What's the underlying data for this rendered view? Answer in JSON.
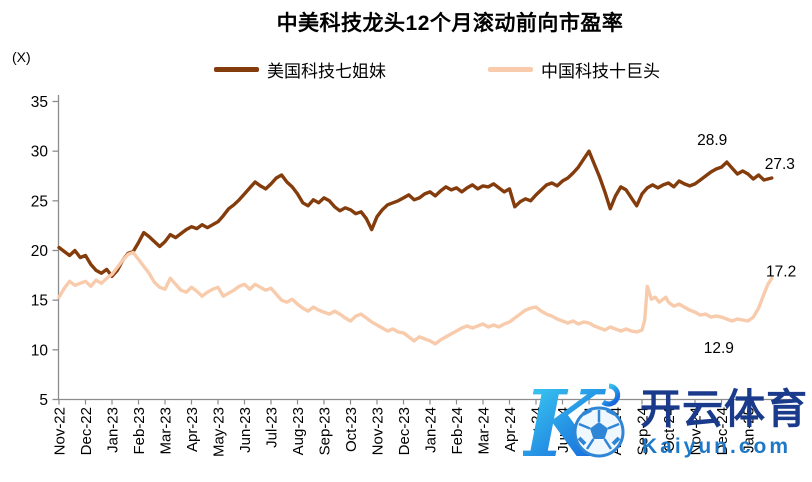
{
  "colors": {
    "us_line": "#843C0C",
    "cn_line": "#F8CBAD",
    "axis": "#8C8C8C",
    "text": "#000000",
    "watermark_navy": "#1A3A8C",
    "watermark_blue": "#1E78C8",
    "logo_cyan": "#40D9F4",
    "logo_blue": "#1566DB",
    "ball_blue": "#2F85D6"
  },
  "watermark": {
    "brand_cn": "开云体育",
    "brand_url": "Kaiyun.com",
    "logo": "kaiyun-k-soccer-ball-logo"
  },
  "chart_data": {
    "type": "line",
    "title": "中美科技龙头12个月滚动前向市盈率",
    "unit": "(X)",
    "ylim": [
      5,
      35
    ],
    "y_ticks": [
      5,
      10,
      15,
      20,
      25,
      30,
      35
    ],
    "grid": false,
    "legend_position": "top",
    "x_labels": [
      "Nov-22",
      "Dec-22",
      "Jan-23",
      "Feb-23",
      "Mar-23",
      "Apr-23",
      "May-23",
      "Jun-23",
      "Jul-23",
      "Aug-23",
      "Sep-23",
      "Oct-23",
      "Nov-23",
      "Dec-23",
      "Jan-24",
      "Feb-24",
      "Mar-24",
      "Apr-24",
      "May-24",
      "Jun-24",
      "Jul-24",
      "Aug-24",
      "Sep-24",
      "Oct-24",
      "Nov-24",
      "Dec-24",
      "Jan-25"
    ],
    "x_unit_note": "months, 0 = Nov-22",
    "series": [
      {
        "key": "us-tech-seven",
        "name": "美国科技七姐妹",
        "color": "#843C0C",
        "last_value": 27.3,
        "points": [
          [
            0,
            20.3
          ],
          [
            0.2,
            19.9
          ],
          [
            0.4,
            19.5
          ],
          [
            0.6,
            20.0
          ],
          [
            0.8,
            19.3
          ],
          [
            1.0,
            19.5
          ],
          [
            1.2,
            18.6
          ],
          [
            1.4,
            18.0
          ],
          [
            1.6,
            17.7
          ],
          [
            1.8,
            18.1
          ],
          [
            2.0,
            17.4
          ],
          [
            2.2,
            18.0
          ],
          [
            2.4,
            19.0
          ],
          [
            2.6,
            19.7
          ],
          [
            2.8,
            19.9
          ],
          [
            3.0,
            20.8
          ],
          [
            3.2,
            21.8
          ],
          [
            3.4,
            21.4
          ],
          [
            3.6,
            20.9
          ],
          [
            3.8,
            20.4
          ],
          [
            4.0,
            20.9
          ],
          [
            4.2,
            21.6
          ],
          [
            4.4,
            21.3
          ],
          [
            4.6,
            21.7
          ],
          [
            4.8,
            22.1
          ],
          [
            5.0,
            22.4
          ],
          [
            5.2,
            22.2
          ],
          [
            5.4,
            22.6
          ],
          [
            5.6,
            22.3
          ],
          [
            5.8,
            22.6
          ],
          [
            6.0,
            22.9
          ],
          [
            6.2,
            23.5
          ],
          [
            6.4,
            24.2
          ],
          [
            6.6,
            24.6
          ],
          [
            6.8,
            25.1
          ],
          [
            7.0,
            25.7
          ],
          [
            7.2,
            26.3
          ],
          [
            7.4,
            26.9
          ],
          [
            7.6,
            26.5
          ],
          [
            7.8,
            26.2
          ],
          [
            8.0,
            26.7
          ],
          [
            8.2,
            27.3
          ],
          [
            8.4,
            27.6
          ],
          [
            8.6,
            26.9
          ],
          [
            8.8,
            26.4
          ],
          [
            9.0,
            25.7
          ],
          [
            9.2,
            24.8
          ],
          [
            9.4,
            24.5
          ],
          [
            9.6,
            25.1
          ],
          [
            9.8,
            24.8
          ],
          [
            10.0,
            25.3
          ],
          [
            10.2,
            25.0
          ],
          [
            10.4,
            24.4
          ],
          [
            10.6,
            24.0
          ],
          [
            10.8,
            24.3
          ],
          [
            11.0,
            24.1
          ],
          [
            11.2,
            23.7
          ],
          [
            11.4,
            23.9
          ],
          [
            11.6,
            23.2
          ],
          [
            11.8,
            22.1
          ],
          [
            12.0,
            23.4
          ],
          [
            12.2,
            24.1
          ],
          [
            12.4,
            24.6
          ],
          [
            12.6,
            24.8
          ],
          [
            12.8,
            25.0
          ],
          [
            13.0,
            25.3
          ],
          [
            13.2,
            25.6
          ],
          [
            13.4,
            25.1
          ],
          [
            13.6,
            25.3
          ],
          [
            13.8,
            25.7
          ],
          [
            14.0,
            25.9
          ],
          [
            14.2,
            25.5
          ],
          [
            14.4,
            26.0
          ],
          [
            14.6,
            26.4
          ],
          [
            14.8,
            26.1
          ],
          [
            15.0,
            26.3
          ],
          [
            15.2,
            25.9
          ],
          [
            15.4,
            26.3
          ],
          [
            15.6,
            26.6
          ],
          [
            15.8,
            26.2
          ],
          [
            16.0,
            26.5
          ],
          [
            16.2,
            26.4
          ],
          [
            16.4,
            26.7
          ],
          [
            16.6,
            26.3
          ],
          [
            16.8,
            25.9
          ],
          [
            17.0,
            26.2
          ],
          [
            17.2,
            24.4
          ],
          [
            17.4,
            24.9
          ],
          [
            17.6,
            25.2
          ],
          [
            17.8,
            25.0
          ],
          [
            18.0,
            25.6
          ],
          [
            18.2,
            26.1
          ],
          [
            18.4,
            26.6
          ],
          [
            18.6,
            26.8
          ],
          [
            18.8,
            26.5
          ],
          [
            19.0,
            27.0
          ],
          [
            19.2,
            27.3
          ],
          [
            19.4,
            27.8
          ],
          [
            19.6,
            28.4
          ],
          [
            19.8,
            29.2
          ],
          [
            20.0,
            30.0
          ],
          [
            20.2,
            28.7
          ],
          [
            20.4,
            27.4
          ],
          [
            20.6,
            25.9
          ],
          [
            20.8,
            24.2
          ],
          [
            21.0,
            25.5
          ],
          [
            21.2,
            26.4
          ],
          [
            21.4,
            26.1
          ],
          [
            21.6,
            25.3
          ],
          [
            21.8,
            24.5
          ],
          [
            22.0,
            25.7
          ],
          [
            22.2,
            26.3
          ],
          [
            22.4,
            26.6
          ],
          [
            22.6,
            26.3
          ],
          [
            22.8,
            26.6
          ],
          [
            23.0,
            26.8
          ],
          [
            23.2,
            26.4
          ],
          [
            23.4,
            27.0
          ],
          [
            23.6,
            26.7
          ],
          [
            23.8,
            26.5
          ],
          [
            24.0,
            26.7
          ],
          [
            24.2,
            27.1
          ],
          [
            24.4,
            27.5
          ],
          [
            24.6,
            27.9
          ],
          [
            24.8,
            28.2
          ],
          [
            25.0,
            28.4
          ],
          [
            25.2,
            28.9
          ],
          [
            25.4,
            28.3
          ],
          [
            25.6,
            27.7
          ],
          [
            25.8,
            28.0
          ],
          [
            26.0,
            27.7
          ],
          [
            26.2,
            27.2
          ],
          [
            26.4,
            27.6
          ],
          [
            26.6,
            27.1
          ],
          [
            26.9,
            27.3
          ]
        ]
      },
      {
        "key": "cn-tech-ten",
        "name": "中国科技十巨头",
        "color": "#F8CBAD",
        "last_value": 17.2,
        "points": [
          [
            0,
            15.3
          ],
          [
            0.2,
            16.2
          ],
          [
            0.4,
            16.9
          ],
          [
            0.6,
            16.5
          ],
          [
            0.8,
            16.7
          ],
          [
            1.0,
            16.9
          ],
          [
            1.2,
            16.4
          ],
          [
            1.4,
            17.0
          ],
          [
            1.6,
            16.7
          ],
          [
            1.8,
            17.2
          ],
          [
            2.0,
            17.6
          ],
          [
            2.2,
            18.3
          ],
          [
            2.4,
            19.0
          ],
          [
            2.6,
            19.6
          ],
          [
            2.8,
            19.8
          ],
          [
            3.0,
            19.1
          ],
          [
            3.2,
            18.4
          ],
          [
            3.4,
            17.7
          ],
          [
            3.6,
            16.8
          ],
          [
            3.8,
            16.3
          ],
          [
            4.0,
            16.1
          ],
          [
            4.2,
            17.2
          ],
          [
            4.4,
            16.6
          ],
          [
            4.6,
            16.0
          ],
          [
            4.8,
            15.8
          ],
          [
            5.0,
            16.3
          ],
          [
            5.2,
            15.9
          ],
          [
            5.4,
            15.4
          ],
          [
            5.6,
            15.8
          ],
          [
            5.8,
            16.1
          ],
          [
            6.0,
            16.3
          ],
          [
            6.2,
            15.4
          ],
          [
            6.4,
            15.7
          ],
          [
            6.6,
            16.0
          ],
          [
            6.8,
            16.4
          ],
          [
            7.0,
            16.6
          ],
          [
            7.2,
            16.1
          ],
          [
            7.4,
            16.6
          ],
          [
            7.6,
            16.3
          ],
          [
            7.8,
            16.0
          ],
          [
            8.0,
            16.2
          ],
          [
            8.2,
            15.6
          ],
          [
            8.4,
            15.0
          ],
          [
            8.6,
            14.8
          ],
          [
            8.8,
            15.1
          ],
          [
            9.0,
            14.6
          ],
          [
            9.2,
            14.2
          ],
          [
            9.4,
            13.9
          ],
          [
            9.6,
            14.3
          ],
          [
            9.8,
            14.0
          ],
          [
            10.0,
            13.8
          ],
          [
            10.2,
            13.6
          ],
          [
            10.4,
            13.9
          ],
          [
            10.6,
            13.6
          ],
          [
            10.8,
            13.2
          ],
          [
            11.0,
            12.9
          ],
          [
            11.2,
            13.4
          ],
          [
            11.4,
            13.6
          ],
          [
            11.6,
            13.2
          ],
          [
            11.8,
            12.8
          ],
          [
            12.0,
            12.5
          ],
          [
            12.2,
            12.2
          ],
          [
            12.4,
            11.9
          ],
          [
            12.6,
            12.1
          ],
          [
            12.8,
            11.8
          ],
          [
            13.0,
            11.7
          ],
          [
            13.2,
            11.3
          ],
          [
            13.4,
            10.9
          ],
          [
            13.6,
            11.3
          ],
          [
            13.8,
            11.1
          ],
          [
            14.0,
            10.9
          ],
          [
            14.2,
            10.6
          ],
          [
            14.4,
            11.0
          ],
          [
            14.6,
            11.3
          ],
          [
            14.8,
            11.6
          ],
          [
            15.0,
            11.9
          ],
          [
            15.2,
            12.2
          ],
          [
            15.4,
            12.4
          ],
          [
            15.6,
            12.2
          ],
          [
            15.8,
            12.4
          ],
          [
            16.0,
            12.6
          ],
          [
            16.2,
            12.3
          ],
          [
            16.4,
            12.5
          ],
          [
            16.6,
            12.3
          ],
          [
            16.8,
            12.6
          ],
          [
            17.0,
            12.8
          ],
          [
            17.2,
            13.2
          ],
          [
            17.4,
            13.6
          ],
          [
            17.6,
            14.0
          ],
          [
            17.8,
            14.2
          ],
          [
            18.0,
            14.3
          ],
          [
            18.2,
            13.9
          ],
          [
            18.4,
            13.6
          ],
          [
            18.6,
            13.4
          ],
          [
            18.8,
            13.1
          ],
          [
            19.0,
            12.9
          ],
          [
            19.2,
            12.7
          ],
          [
            19.4,
            12.9
          ],
          [
            19.6,
            12.6
          ],
          [
            19.8,
            12.8
          ],
          [
            20.0,
            12.7
          ],
          [
            20.2,
            12.4
          ],
          [
            20.4,
            12.2
          ],
          [
            20.6,
            12.0
          ],
          [
            20.8,
            12.3
          ],
          [
            21.0,
            12.1
          ],
          [
            21.2,
            11.9
          ],
          [
            21.4,
            12.1
          ],
          [
            21.6,
            11.9
          ],
          [
            21.8,
            11.8
          ],
          [
            22.0,
            12.0
          ],
          [
            22.1,
            13.0
          ],
          [
            22.2,
            16.4
          ],
          [
            22.35,
            15.1
          ],
          [
            22.5,
            15.3
          ],
          [
            22.65,
            14.8
          ],
          [
            22.8,
            15.1
          ],
          [
            22.9,
            15.3
          ],
          [
            23.0,
            14.8
          ],
          [
            23.2,
            14.4
          ],
          [
            23.4,
            14.6
          ],
          [
            23.6,
            14.3
          ],
          [
            23.8,
            14.0
          ],
          [
            24.0,
            13.8
          ],
          [
            24.2,
            13.5
          ],
          [
            24.4,
            13.6
          ],
          [
            24.6,
            13.3
          ],
          [
            24.8,
            13.4
          ],
          [
            25.0,
            13.3
          ],
          [
            25.2,
            13.1
          ],
          [
            25.4,
            12.9
          ],
          [
            25.6,
            13.1
          ],
          [
            25.8,
            13.0
          ],
          [
            26.0,
            12.9
          ],
          [
            26.2,
            13.3
          ],
          [
            26.4,
            14.2
          ],
          [
            26.6,
            15.6
          ],
          [
            26.75,
            16.6
          ],
          [
            26.9,
            17.2
          ]
        ]
      }
    ],
    "annotations": [
      {
        "label": "28.9",
        "x": 24.65,
        "y": 31.1
      },
      {
        "label": "27.3",
        "x": 27.2,
        "y": 28.7
      },
      {
        "label": "17.2",
        "x": 27.25,
        "y": 17.9
      },
      {
        "label": "12.9",
        "x": 24.9,
        "y": 10.2
      }
    ]
  }
}
